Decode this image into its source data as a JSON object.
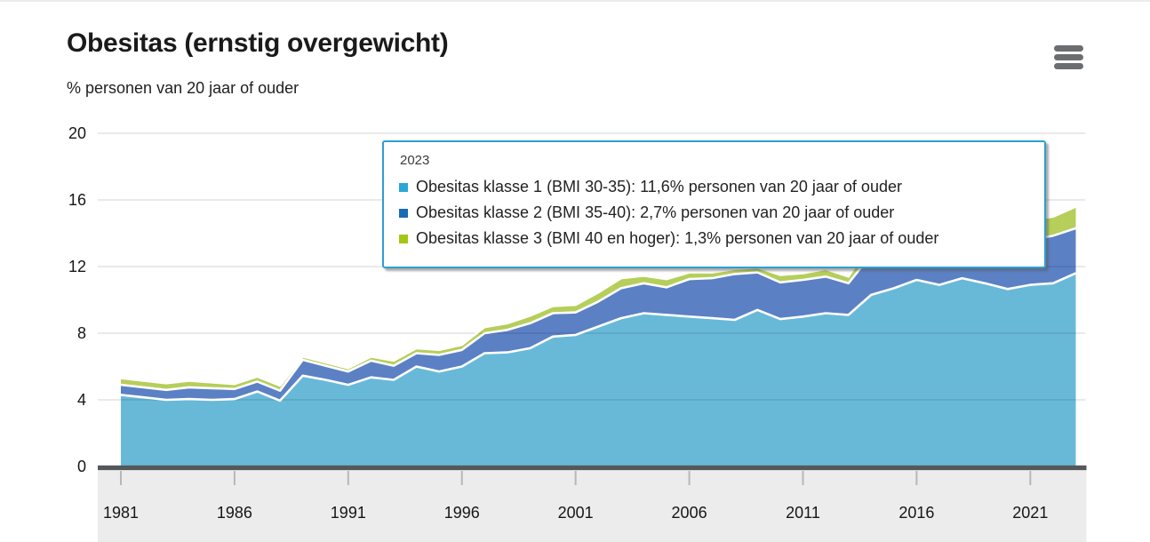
{
  "header": {
    "title": "Obesitas (ernstig overgewicht)",
    "subtitle": "% personen van 20 jaar of ouder"
  },
  "menu": {
    "icon": "hamburger-menu-icon"
  },
  "tooltip": {
    "year": "2023",
    "rows": [
      {
        "label": "Obesitas klasse 1 (BMI 30-35): 11,6% personen van 20 jaar of ouder",
        "marker_color": "#2ba6d9"
      },
      {
        "label": "Obesitas klasse 2 (BMI 35-40): 2,7% personen van 20 jaar of ouder",
        "marker_color": "#1a6bb5"
      },
      {
        "label": "Obesitas klasse 3 (BMI 40 en hoger): 1,3% personen van 20 jaar of ouder",
        "marker_color": "#a4c614"
      }
    ],
    "border_color": "#2d9fd3"
  },
  "chart_data": {
    "type": "area",
    "stacked": true,
    "title": "Obesitas (ernstig overgewicht)",
    "ylabel": "% personen van 20 jaar of ouder",
    "ylim": [
      0,
      20
    ],
    "y_ticks": [
      0,
      4,
      8,
      12,
      16,
      20
    ],
    "x_ticks": [
      1981,
      1986,
      1991,
      1996,
      2001,
      2006,
      2011,
      2016,
      2021
    ],
    "grid": true,
    "legend_position": "tooltip",
    "x": [
      1981,
      1982,
      1983,
      1984,
      1985,
      1986,
      1987,
      1988,
      1989,
      1990,
      1991,
      1992,
      1993,
      1994,
      1995,
      1996,
      1997,
      1998,
      1999,
      2000,
      2001,
      2002,
      2003,
      2004,
      2005,
      2006,
      2007,
      2008,
      2009,
      2010,
      2011,
      2012,
      2013,
      2014,
      2015,
      2016,
      2017,
      2018,
      2019,
      2020,
      2021,
      2022,
      2023
    ],
    "series": [
      {
        "name": "Obesitas klasse 1 (BMI 30-35)",
        "color": "#68b9d8",
        "marker_color": "#2ba6d9",
        "values": [
          4.3,
          4.15,
          4.0,
          4.05,
          4.0,
          4.05,
          4.5,
          3.95,
          5.45,
          5.2,
          4.9,
          5.35,
          5.2,
          6.0,
          5.7,
          6.0,
          6.8,
          6.85,
          7.1,
          7.8,
          7.9,
          8.4,
          8.9,
          9.2,
          9.1,
          9.0,
          8.9,
          8.8,
          9.4,
          8.85,
          9.0,
          9.2,
          9.1,
          10.3,
          10.7,
          11.2,
          10.9,
          11.3,
          11.0,
          10.65,
          10.9,
          11.0,
          11.6
        ]
      },
      {
        "name": "Obesitas klasse 2 (BMI 35-40)",
        "color": "#5b80c4",
        "marker_color": "#1a6bb5",
        "values": [
          0.6,
          0.6,
          0.6,
          0.7,
          0.7,
          0.6,
          0.6,
          0.6,
          0.95,
          0.85,
          0.8,
          1.0,
          0.85,
          0.8,
          1.0,
          1.0,
          1.2,
          1.35,
          1.5,
          1.4,
          1.35,
          1.5,
          1.8,
          1.8,
          1.65,
          2.25,
          2.4,
          2.75,
          2.25,
          2.2,
          2.2,
          2.2,
          1.9,
          2.4,
          2.3,
          2.5,
          2.5,
          2.5,
          2.6,
          2.6,
          2.7,
          2.85,
          2.7
        ]
      },
      {
        "name": "Obesitas klasse 3 (BMI 40 en hoger)",
        "color": "#b6ce5a",
        "marker_color": "#a4c614",
        "values": [
          0.4,
          0.4,
          0.4,
          0.4,
          0.35,
          0.3,
          0.3,
          0.3,
          0.2,
          0.2,
          0.2,
          0.25,
          0.3,
          0.3,
          0.3,
          0.3,
          0.37,
          0.4,
          0.45,
          0.43,
          0.45,
          0.55,
          0.6,
          0.45,
          0.5,
          0.4,
          0.35,
          0.3,
          0.3,
          0.45,
          0.4,
          0.45,
          0.4,
          0.8,
          0.9,
          1.0,
          0.9,
          1.0,
          1.1,
          1.1,
          1.2,
          1.15,
          1.3
        ]
      }
    ]
  },
  "colors": {
    "title": "#1a1a1a",
    "boundary": "#ffffff",
    "grid": "rgba(0,0,0,0.17)",
    "baseline": "#54585a",
    "axis_band": "#ececec",
    "tick": "#b7b7b7",
    "axis_label": "#161616",
    "menu_icon": "#6b6e70"
  }
}
